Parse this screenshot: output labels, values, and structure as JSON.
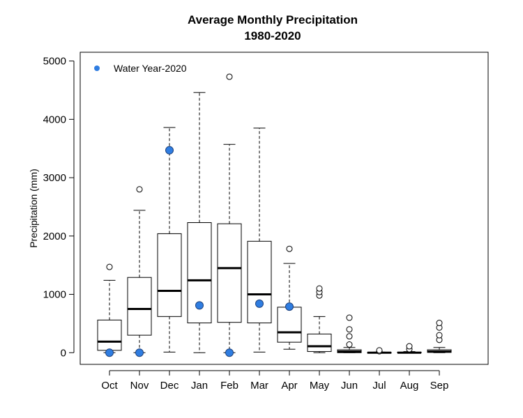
{
  "chart_data": {
    "type": "box",
    "title": "Average Monthly Precipitation",
    "subtitle": "1980-2020",
    "xlabel": "",
    "ylabel": "Precipitation (mm)",
    "ylim": [
      -200,
      5150
    ],
    "yticks": [
      0,
      1000,
      2000,
      3000,
      4000,
      5000
    ],
    "ytick_labels": [
      "0",
      "1000",
      "2000",
      "3000",
      "4000",
      "5000"
    ],
    "categories": [
      "Oct",
      "Nov",
      "Dec",
      "Jan",
      "Feb",
      "Mar",
      "Apr",
      "May",
      "Jun",
      "Jul",
      "Aug",
      "Sep"
    ],
    "boxes": [
      {
        "whisker_low": 0,
        "q1": 40,
        "median": 190,
        "q3": 560,
        "whisker_high": 1240,
        "outliers": [
          1470
        ]
      },
      {
        "whisker_low": 0,
        "q1": 300,
        "median": 750,
        "q3": 1290,
        "whisker_high": 2440,
        "outliers": [
          2800
        ]
      },
      {
        "whisker_low": 10,
        "q1": 620,
        "median": 1060,
        "q3": 2040,
        "whisker_high": 3860,
        "outliers": []
      },
      {
        "whisker_low": 0,
        "q1": 510,
        "median": 1240,
        "q3": 2230,
        "whisker_high": 4460,
        "outliers": []
      },
      {
        "whisker_low": 0,
        "q1": 520,
        "median": 1450,
        "q3": 2210,
        "whisker_high": 3570,
        "outliers": [
          4730
        ]
      },
      {
        "whisker_low": 10,
        "q1": 510,
        "median": 1000,
        "q3": 1910,
        "whisker_high": 3850,
        "outliers": []
      },
      {
        "whisker_low": 60,
        "q1": 180,
        "median": 350,
        "q3": 780,
        "whisker_high": 1530,
        "outliers": [
          1780
        ]
      },
      {
        "whisker_low": 0,
        "q1": 20,
        "median": 110,
        "q3": 320,
        "whisker_high": 620,
        "outliers": [
          980,
          1040,
          1100
        ]
      },
      {
        "whisker_low": 0,
        "q1": 0,
        "median": 20,
        "q3": 50,
        "whisker_high": 90,
        "outliers": [
          140,
          280,
          400,
          600
        ]
      },
      {
        "whisker_low": 0,
        "q1": 0,
        "median": 0,
        "q3": 5,
        "whisker_high": 10,
        "outliers": [
          25,
          40
        ]
      },
      {
        "whisker_low": 0,
        "q1": 0,
        "median": 0,
        "q3": 10,
        "whisker_high": 20,
        "outliers": [
          60,
          110
        ]
      },
      {
        "whisker_low": 0,
        "q1": 5,
        "median": 20,
        "q3": 50,
        "whisker_high": 90,
        "outliers": [
          220,
          300,
          430,
          510
        ]
      }
    ],
    "series": [
      {
        "name": "Water Year-2020",
        "color": "#2f7de1",
        "values": [
          0,
          0,
          3470,
          810,
          0,
          840,
          790,
          null,
          null,
          null,
          null,
          null
        ]
      }
    ],
    "legend_position": "top-left",
    "grid": false
  }
}
